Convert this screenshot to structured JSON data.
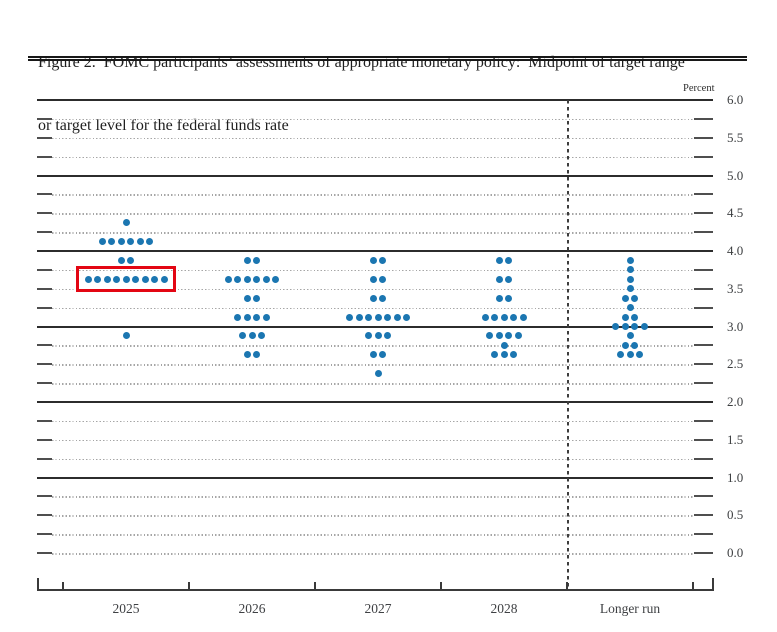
{
  "figure": {
    "title_line1": "Figure 2.  FOMC participants’ assessments of appropriate monetary policy:  Midpoint of target range",
    "title_line2": "or target level for the federal funds rate"
  },
  "chart_data": {
    "type": "scatter",
    "title": "FOMC participants’ assessments of appropriate monetary policy: Midpoint of target range or target level for the federal funds rate",
    "ylabel": "Percent",
    "xlabel": "",
    "ylim": [
      0.0,
      6.0
    ],
    "grid": "on",
    "grid_step": 0.25,
    "label_step": 0.5,
    "legend_position": "none",
    "solid_lines": [
      1.0,
      2.0,
      3.0,
      4.0,
      5.0,
      6.0
    ],
    "ytick_labels": [
      "6.0",
      "5.5",
      "5.0",
      "4.5",
      "4.0",
      "3.5",
      "3.0",
      "2.5",
      "2.0",
      "1.5",
      "1.0",
      "0.5",
      "0.0"
    ],
    "categories": [
      "2025",
      "2026",
      "2027",
      "2028",
      "Longer run"
    ],
    "separator_after_category": "2028",
    "dot_color": "#1b76b1",
    "columns": [
      {
        "category": "2025",
        "dots": [
          {
            "rate": 4.375,
            "count": 1
          },
          {
            "rate": 4.125,
            "count": 6
          },
          {
            "rate": 3.875,
            "count": 2
          },
          {
            "rate": 3.625,
            "count": 9
          },
          {
            "rate": 2.875,
            "count": 1
          }
        ]
      },
      {
        "category": "2026",
        "dots": [
          {
            "rate": 3.875,
            "count": 2
          },
          {
            "rate": 3.625,
            "count": 6
          },
          {
            "rate": 3.375,
            "count": 2
          },
          {
            "rate": 3.125,
            "count": 4
          },
          {
            "rate": 2.875,
            "count": 3
          },
          {
            "rate": 2.625,
            "count": 2
          }
        ]
      },
      {
        "category": "2027",
        "dots": [
          {
            "rate": 3.875,
            "count": 2
          },
          {
            "rate": 3.625,
            "count": 2
          },
          {
            "rate": 3.375,
            "count": 2
          },
          {
            "rate": 3.125,
            "count": 7
          },
          {
            "rate": 2.875,
            "count": 3
          },
          {
            "rate": 2.625,
            "count": 2
          },
          {
            "rate": 2.375,
            "count": 1
          }
        ]
      },
      {
        "category": "2028",
        "dots": [
          {
            "rate": 3.875,
            "count": 2
          },
          {
            "rate": 3.625,
            "count": 2
          },
          {
            "rate": 3.375,
            "count": 2
          },
          {
            "rate": 3.125,
            "count": 5
          },
          {
            "rate": 2.875,
            "count": 4
          },
          {
            "rate": 2.75,
            "count": 1
          },
          {
            "rate": 2.625,
            "count": 3
          }
        ]
      },
      {
        "category": "Longer run",
        "dots": [
          {
            "rate": 3.875,
            "count": 1
          },
          {
            "rate": 3.75,
            "count": 1
          },
          {
            "rate": 3.625,
            "count": 1
          },
          {
            "rate": 3.5,
            "count": 1
          },
          {
            "rate": 3.375,
            "count": 2
          },
          {
            "rate": 3.25,
            "count": 1
          },
          {
            "rate": 3.125,
            "count": 2
          },
          {
            "rate": 3.0,
            "count": 4
          },
          {
            "rate": 2.875,
            "count": 1
          },
          {
            "rate": 2.75,
            "count": 2
          },
          {
            "rate": 2.625,
            "count": 3
          }
        ]
      }
    ],
    "annotations": [
      {
        "type": "highlight-box",
        "category": "2025",
        "rate": 3.625,
        "color": "#e30613"
      }
    ]
  }
}
